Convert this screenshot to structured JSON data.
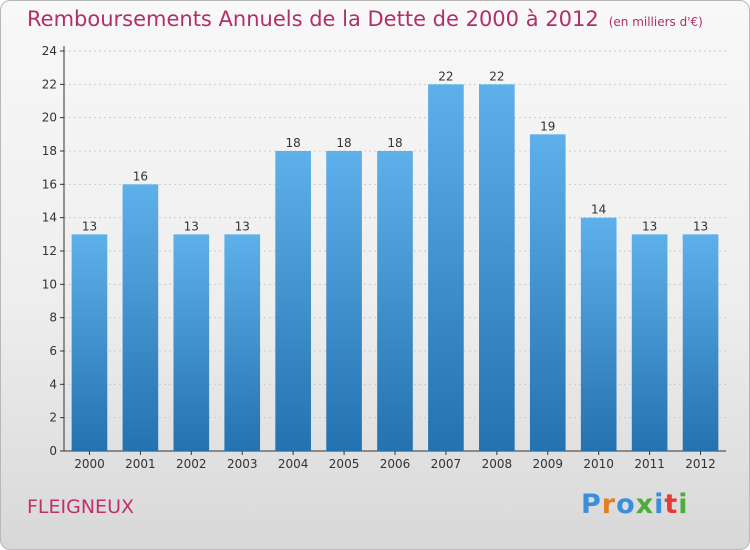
{
  "title": "Remboursements Annuels de la Dette de 2000 à 2012",
  "unit_note": "(en milliers d'€)",
  "commune": "FLEIGNEUX",
  "logo_text": "Proxiti",
  "colors": {
    "title": "#b0306a",
    "bar_top": "#5eb0ea",
    "bar_bottom": "#2472b0",
    "axis": "#333333",
    "grid": "#cccccc"
  },
  "chart_data": {
    "type": "bar",
    "title": "Remboursements Annuels de la Dette de 2000 à 2012",
    "categories": [
      "2000",
      "2001",
      "2002",
      "2003",
      "2004",
      "2005",
      "2006",
      "2007",
      "2008",
      "2009",
      "2010",
      "2011",
      "2012"
    ],
    "values": [
      13,
      16,
      13,
      13,
      18,
      18,
      18,
      22,
      22,
      19,
      14,
      13,
      13
    ],
    "ylim": [
      0,
      24
    ],
    "yticks": [
      0,
      2,
      4,
      6,
      8,
      10,
      12,
      14,
      16,
      18,
      20,
      22,
      24
    ],
    "grid": true,
    "data_labels": true
  }
}
